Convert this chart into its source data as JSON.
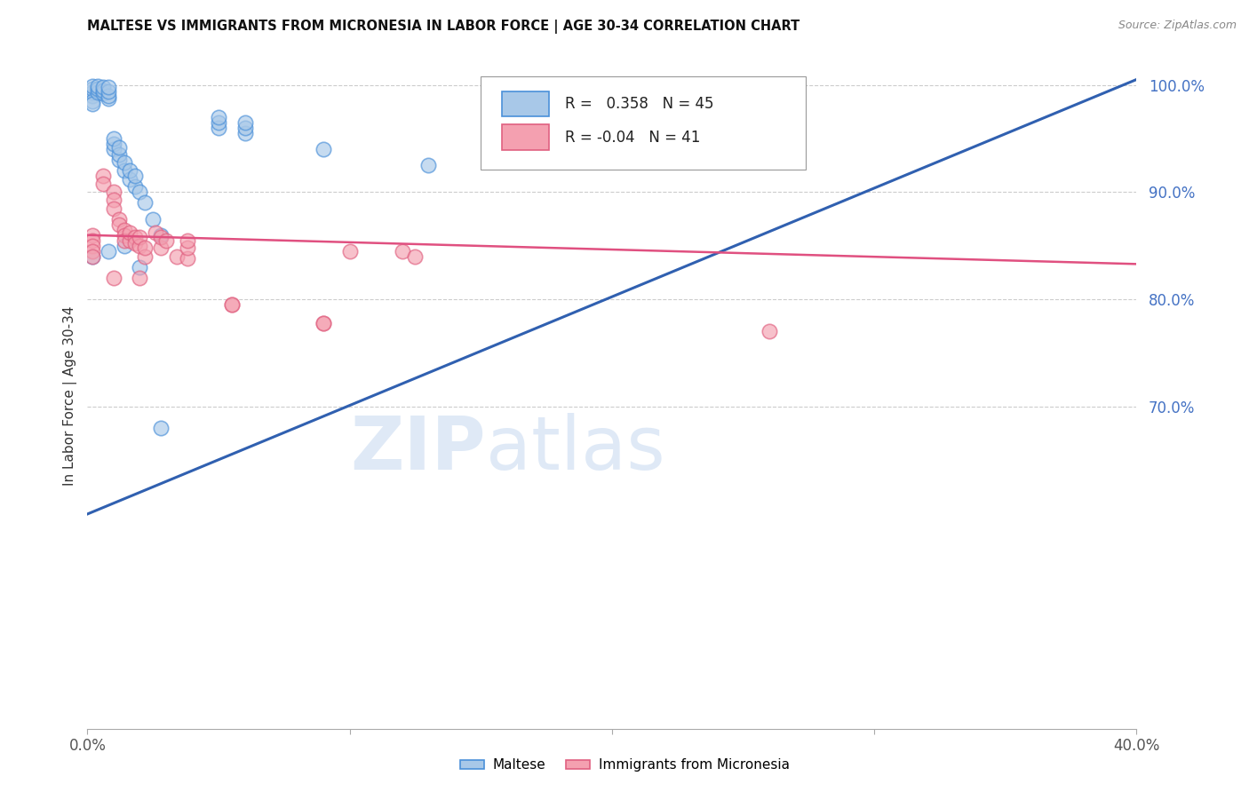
{
  "title": "MALTESE VS IMMIGRANTS FROM MICRONESIA IN LABOR FORCE | AGE 30-34 CORRELATION CHART",
  "source": "Source: ZipAtlas.com",
  "ylabel": "In Labor Force | Age 30-34",
  "xlim": [
    0.0,
    0.4
  ],
  "ylim": [
    0.4,
    1.02
  ],
  "blue_R": 0.358,
  "blue_N": 45,
  "pink_R": -0.04,
  "pink_N": 41,
  "blue_fill": "#a8c8e8",
  "blue_edge": "#4a90d9",
  "pink_fill": "#f4a0b0",
  "pink_edge": "#e06080",
  "blue_line": "#3060b0",
  "pink_line": "#e05080",
  "right_axis_color": "#4472c4",
  "grid_color": "#cccccc",
  "blue_line_x0": 0.0,
  "blue_line_x1": 0.4,
  "blue_line_y0": 0.6,
  "blue_line_y1": 1.005,
  "pink_line_x0": 0.0,
  "pink_line_x1": 0.4,
  "pink_line_y0": 0.86,
  "pink_line_y1": 0.833,
  "blue_x": [
    0.002,
    0.002,
    0.002,
    0.002,
    0.002,
    0.002,
    0.004,
    0.004,
    0.004,
    0.006,
    0.006,
    0.006,
    0.008,
    0.008,
    0.008,
    0.008,
    0.01,
    0.01,
    0.01,
    0.012,
    0.012,
    0.012,
    0.014,
    0.014,
    0.016,
    0.016,
    0.018,
    0.018,
    0.02,
    0.022,
    0.025,
    0.028,
    0.05,
    0.05,
    0.05,
    0.06,
    0.06,
    0.06,
    0.09,
    0.13,
    0.002,
    0.008,
    0.014,
    0.02,
    0.028
  ],
  "blue_y": [
    0.99,
    0.993,
    0.996,
    0.999,
    0.985,
    0.982,
    0.993,
    0.996,
    0.999,
    0.992,
    0.995,
    0.998,
    0.987,
    0.99,
    0.994,
    0.998,
    0.94,
    0.945,
    0.95,
    0.93,
    0.935,
    0.942,
    0.92,
    0.928,
    0.912,
    0.92,
    0.905,
    0.915,
    0.9,
    0.89,
    0.875,
    0.86,
    0.96,
    0.965,
    0.97,
    0.955,
    0.96,
    0.965,
    0.94,
    0.925,
    0.84,
    0.845,
    0.85,
    0.83,
    0.68
  ],
  "pink_x": [
    0.002,
    0.002,
    0.002,
    0.002,
    0.002,
    0.006,
    0.006,
    0.01,
    0.01,
    0.01,
    0.012,
    0.012,
    0.014,
    0.014,
    0.014,
    0.016,
    0.016,
    0.018,
    0.018,
    0.02,
    0.02,
    0.022,
    0.022,
    0.026,
    0.028,
    0.028,
    0.034,
    0.038,
    0.038,
    0.055,
    0.09,
    0.1,
    0.12,
    0.125,
    0.26,
    0.01,
    0.02,
    0.03,
    0.038,
    0.055,
    0.09
  ],
  "pink_y": [
    0.86,
    0.855,
    0.85,
    0.845,
    0.84,
    0.915,
    0.908,
    0.9,
    0.893,
    0.885,
    0.875,
    0.87,
    0.865,
    0.86,
    0.855,
    0.855,
    0.862,
    0.858,
    0.852,
    0.85,
    0.858,
    0.84,
    0.848,
    0.862,
    0.848,
    0.858,
    0.84,
    0.838,
    0.848,
    0.795,
    0.778,
    0.845,
    0.845,
    0.84,
    0.77,
    0.82,
    0.82,
    0.855,
    0.855,
    0.795,
    0.778
  ]
}
